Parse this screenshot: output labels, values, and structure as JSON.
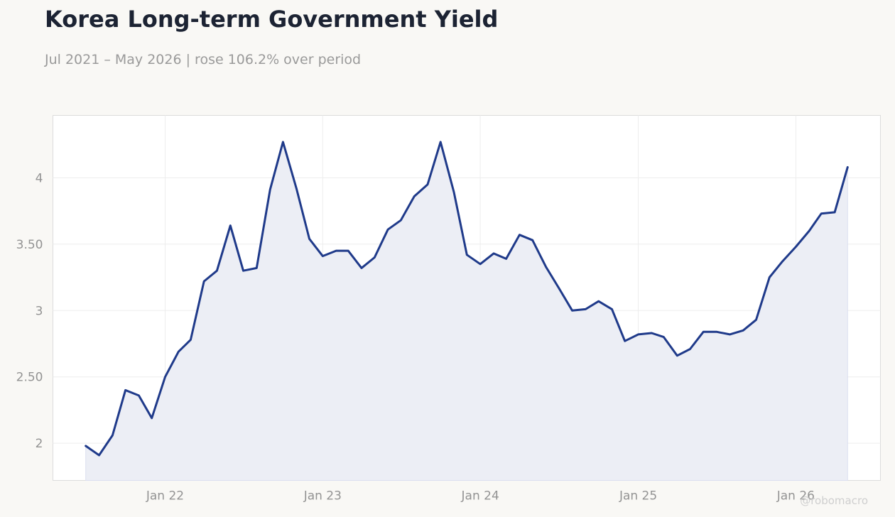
{
  "title": "Korea Long-term Government Yield",
  "subtitle": "Jul 2021 – May 2026 | rose 106.2% over period",
  "watermark": "@robomacro",
  "colors": {
    "background": "#f9f8f5",
    "plot_background": "#ffffff",
    "line": "#1f3a8a",
    "fill": "#eceef5",
    "grid": "#ededed",
    "axis_text": "#939393",
    "title": "#1c2333"
  },
  "chart_data": {
    "type": "area",
    "title": "Korea Long-term Government Yield",
    "xlabel": "",
    "ylabel": "",
    "grid": true,
    "legend": "none",
    "xlim": [
      "2021-04-16",
      "2026-07-16"
    ],
    "ylim": [
      1.72,
      4.47
    ],
    "x_ticks": [
      {
        "label": "Jan 22",
        "date": "2022-01-01"
      },
      {
        "label": "Jan 23",
        "date": "2023-01-01"
      },
      {
        "label": "Jan 24",
        "date": "2024-01-01"
      },
      {
        "label": "Jan 25",
        "date": "2025-01-01"
      },
      {
        "label": "Jan 26",
        "date": "2026-01-01"
      }
    ],
    "y_ticks": [
      {
        "label": "2",
        "value": 2
      },
      {
        "label": "2.50",
        "value": 2.5
      },
      {
        "label": "3",
        "value": 3
      },
      {
        "label": "3.50",
        "value": 3.5
      },
      {
        "label": "4",
        "value": 4
      }
    ],
    "series": [
      {
        "x": [
          "2021-07-01",
          "2021-08-01",
          "2021-09-01",
          "2021-10-01",
          "2021-11-01",
          "2021-12-01",
          "2022-01-01",
          "2022-02-01",
          "2022-03-01",
          "2022-04-01",
          "2022-05-01",
          "2022-06-01",
          "2022-07-01",
          "2022-08-01",
          "2022-09-01",
          "2022-10-01",
          "2022-11-01",
          "2022-12-01",
          "2023-01-01",
          "2023-02-01",
          "2023-03-01",
          "2023-04-01",
          "2023-05-01",
          "2023-06-01",
          "2023-07-01",
          "2023-08-01",
          "2023-09-01",
          "2023-10-01",
          "2023-11-01",
          "2023-12-01",
          "2024-01-01",
          "2024-02-01",
          "2024-03-01",
          "2024-04-01",
          "2024-05-01",
          "2024-06-01",
          "2024-07-01",
          "2024-08-01",
          "2024-09-01",
          "2024-10-01",
          "2024-11-01",
          "2024-12-01",
          "2025-01-01",
          "2025-02-01",
          "2025-03-01",
          "2025-04-01",
          "2025-05-01",
          "2025-06-01",
          "2025-07-01",
          "2025-08-01",
          "2025-09-01",
          "2025-10-01",
          "2025-11-01",
          "2025-12-01",
          "2026-01-01",
          "2026-02-01",
          "2026-03-01",
          "2026-04-01",
          "2026-05-01"
        ],
        "values": [
          1.98,
          1.91,
          2.06,
          2.4,
          2.36,
          2.19,
          2.5,
          2.69,
          2.78,
          3.22,
          3.3,
          3.64,
          3.3,
          3.32,
          3.91,
          4.27,
          3.92,
          3.54,
          3.41,
          3.45,
          3.45,
          3.32,
          3.4,
          3.61,
          3.68,
          3.86,
          3.95,
          4.27,
          3.89,
          3.42,
          3.35,
          3.43,
          3.39,
          3.57,
          3.53,
          3.33,
          3.17,
          3.0,
          3.01,
          3.07,
          3.01,
          2.77,
          2.82,
          2.83,
          2.8,
          2.66,
          2.71,
          2.84,
          2.84,
          2.82,
          2.85,
          2.93,
          3.25,
          3.37,
          3.48,
          3.6,
          3.73,
          3.74,
          4.08
        ]
      }
    ]
  }
}
